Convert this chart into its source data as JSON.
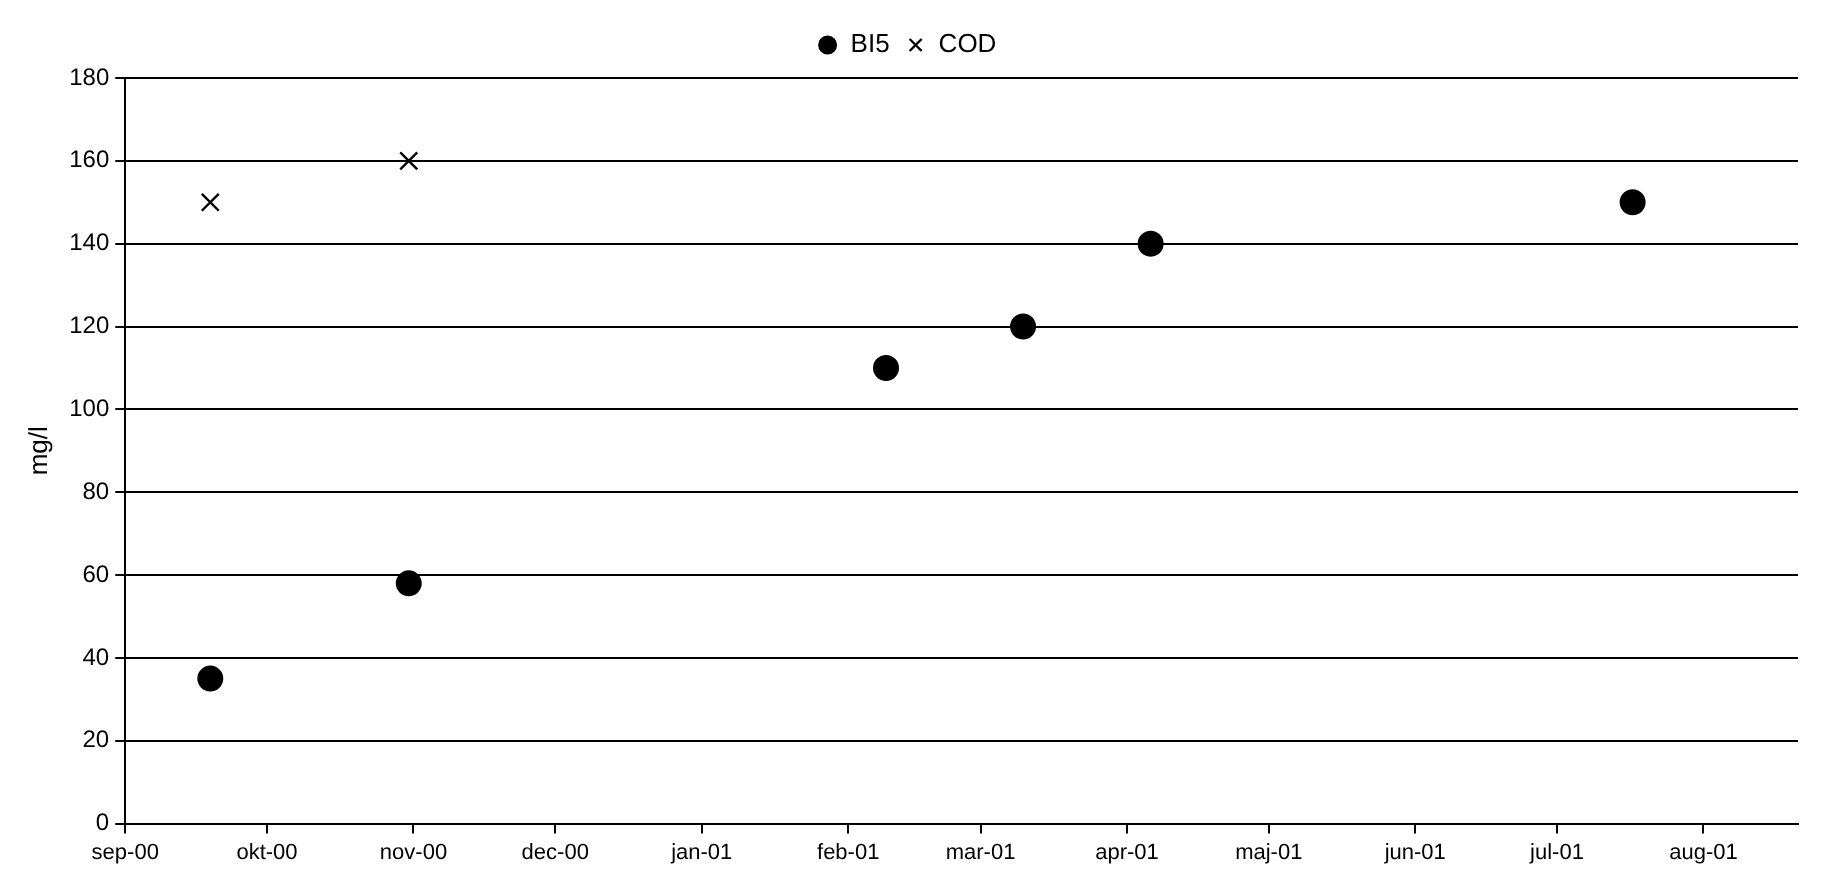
{
  "chart_data": {
    "type": "scatter",
    "ylabel": "mg/l",
    "legend": "top",
    "grid": "y",
    "xlim": [
      "2000-09-01",
      "2001-08-21"
    ],
    "xticks": [
      {
        "value": "2000-09-01",
        "label": "sep-00"
      },
      {
        "value": "2000-10-01",
        "label": "okt-00"
      },
      {
        "value": "2000-11-01",
        "label": "nov-00"
      },
      {
        "value": "2000-12-01",
        "label": "dec-00"
      },
      {
        "value": "2001-01-01",
        "label": "jan-01"
      },
      {
        "value": "2001-02-01",
        "label": "feb-01"
      },
      {
        "value": "2001-03-01",
        "label": "mar-01"
      },
      {
        "value": "2001-04-01",
        "label": "apr-01"
      },
      {
        "value": "2001-05-01",
        "label": "maj-01"
      },
      {
        "value": "2001-06-01",
        "label": "jun-01"
      },
      {
        "value": "2001-07-01",
        "label": "jul-01"
      },
      {
        "value": "2001-08-01",
        "label": "aug-01"
      }
    ],
    "ylim": [
      0,
      180
    ],
    "yticks": [
      0,
      20,
      40,
      60,
      80,
      100,
      120,
      140,
      160,
      180
    ],
    "series": [
      {
        "name": "BI5",
        "color": "#000000",
        "marker": "circle",
        "x": [
          "2000-09-19",
          "2000-10-31",
          "2001-02-09",
          "2001-03-10",
          "2001-04-06",
          "2001-07-17"
        ],
        "values": [
          35,
          58,
          110,
          120,
          140,
          150
        ]
      },
      {
        "name": "COD",
        "color": "#000000",
        "marker": "cross",
        "x": [
          "2000-09-19",
          "2000-10-31"
        ],
        "values": [
          150,
          160
        ]
      }
    ]
  }
}
